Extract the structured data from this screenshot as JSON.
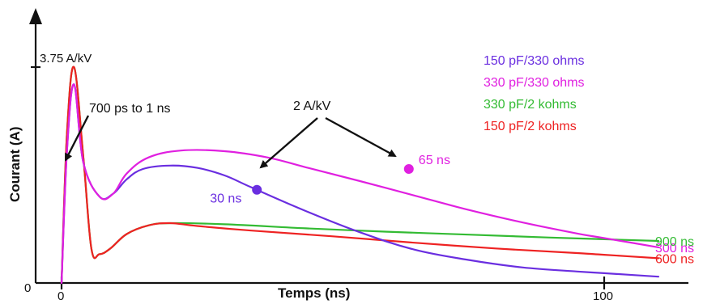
{
  "chart_data": {
    "type": "line",
    "xlabel": "Temps (ns)",
    "ylabel": "Courant (A)",
    "xlim": [
      0,
      110
    ],
    "ylim": [
      0,
      4.5
    ],
    "x_ticks": [
      {
        "value": 0,
        "label": "0"
      },
      {
        "value": 100,
        "label": "100"
      }
    ],
    "y_ticks": [
      {
        "value": 0,
        "label": "0"
      },
      {
        "value": 3.75,
        "label": "3.75 A/kV"
      }
    ],
    "grid": false,
    "legend_position": "top-right",
    "series": [
      {
        "name": "150 pF/330 ohms",
        "color": "#6a2ee0",
        "end_label": "",
        "points": [
          [
            0,
            0
          ],
          [
            1,
            2.3
          ],
          [
            2.3,
            3.45
          ],
          [
            4,
            2.1
          ],
          [
            7,
            1.5
          ],
          [
            9.5,
            1.55
          ],
          [
            12,
            1.8
          ],
          [
            15,
            1.98
          ],
          [
            20,
            2.04
          ],
          [
            25,
            2.0
          ],
          [
            30,
            1.87
          ],
          [
            35,
            1.66
          ],
          [
            45,
            1.25
          ],
          [
            55,
            0.88
          ],
          [
            65,
            0.58
          ],
          [
            75,
            0.4
          ],
          [
            85,
            0.27
          ],
          [
            95,
            0.2
          ],
          [
            100,
            0.17
          ],
          [
            110,
            0.11
          ]
        ]
      },
      {
        "name": "330 pF/330 ohms",
        "color": "#e020e0",
        "end_label": "300 ns",
        "points": [
          [
            0,
            0
          ],
          [
            1,
            2.3
          ],
          [
            2.3,
            3.45
          ],
          [
            4,
            2.1
          ],
          [
            7,
            1.5
          ],
          [
            9.5,
            1.55
          ],
          [
            12,
            1.9
          ],
          [
            16,
            2.18
          ],
          [
            22,
            2.3
          ],
          [
            30,
            2.29
          ],
          [
            38,
            2.18
          ],
          [
            45,
            2.01
          ],
          [
            55,
            1.77
          ],
          [
            65,
            1.52
          ],
          [
            75,
            1.27
          ],
          [
            85,
            1.05
          ],
          [
            95,
            0.86
          ],
          [
            100,
            0.78
          ],
          [
            110,
            0.62
          ]
        ]
      },
      {
        "name": "330 pF/2 kohms",
        "color": "#33bb33",
        "end_label": "900 ns",
        "points": [
          [
            0,
            0
          ],
          [
            1,
            2.6
          ],
          [
            2.3,
            3.75
          ],
          [
            4,
            2.2
          ],
          [
            5.5,
            0.6
          ],
          [
            7,
            0.5
          ],
          [
            9,
            0.6
          ],
          [
            12,
            0.85
          ],
          [
            16,
            1.0
          ],
          [
            20,
            1.04
          ],
          [
            30,
            1.02
          ],
          [
            45,
            0.95
          ],
          [
            60,
            0.89
          ],
          [
            75,
            0.84
          ],
          [
            90,
            0.79
          ],
          [
            100,
            0.76
          ],
          [
            110,
            0.73
          ]
        ]
      },
      {
        "name": "150 pF/2 kohms",
        "color": "#ee2222",
        "end_label": "600 ns",
        "points": [
          [
            0,
            0
          ],
          [
            1,
            2.6
          ],
          [
            2.3,
            3.75
          ],
          [
            4,
            2.2
          ],
          [
            5.5,
            0.6
          ],
          [
            7,
            0.5
          ],
          [
            9,
            0.6
          ],
          [
            12,
            0.85
          ],
          [
            16,
            1.0
          ],
          [
            20,
            1.04
          ],
          [
            25,
            0.99
          ],
          [
            35,
            0.91
          ],
          [
            50,
            0.81
          ],
          [
            65,
            0.7
          ],
          [
            80,
            0.6
          ],
          [
            95,
            0.52
          ],
          [
            100,
            0.49
          ],
          [
            110,
            0.43
          ]
        ]
      }
    ],
    "markers": [
      {
        "series": "150 pF/330 ohms",
        "x": 36,
        "y": 1.62,
        "label": "30 ns",
        "color": "#6a2ee0"
      },
      {
        "series": "330 pF/330 ohms",
        "x": 64,
        "y": 1.98,
        "label": "65 ns",
        "color": "#e020e0"
      }
    ],
    "annotations": [
      {
        "text": "2 A/kV",
        "points_to": [
          "30 ns",
          "65 ns"
        ]
      },
      {
        "text": "700 ps to 1 ns",
        "points_to": [
          "rise time"
        ]
      }
    ]
  }
}
